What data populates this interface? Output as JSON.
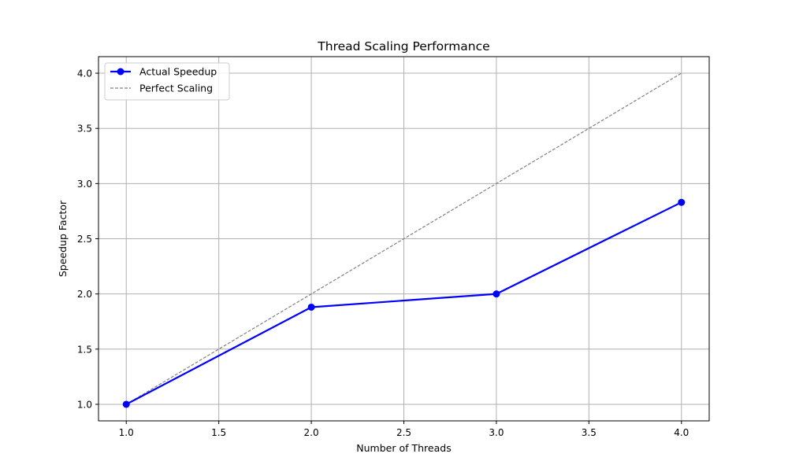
{
  "chart_data": {
    "type": "line",
    "title": "Thread Scaling Performance",
    "xlabel": "Number of Threads",
    "ylabel": "Speedup Factor",
    "xlim": [
      0.85,
      4.15
    ],
    "ylim": [
      0.85,
      4.15
    ],
    "x_ticks": [
      1.0,
      1.5,
      2.0,
      2.5,
      3.0,
      3.5,
      4.0
    ],
    "x_tick_labels": [
      "1.0",
      "1.5",
      "2.0",
      "2.5",
      "3.0",
      "3.5",
      "4.0"
    ],
    "y_ticks": [
      1.0,
      1.5,
      2.0,
      2.5,
      3.0,
      3.5,
      4.0
    ],
    "y_tick_labels": [
      "1.0",
      "1.5",
      "2.0",
      "2.5",
      "3.0",
      "3.5",
      "4.0"
    ],
    "grid": true,
    "legend_position": "upper-left",
    "series": [
      {
        "name": "Actual Speedup",
        "x": [
          1,
          2,
          3,
          4
        ],
        "y": [
          1.0,
          1.88,
          2.0,
          2.83
        ],
        "color": "#0000ff",
        "style": "solid",
        "marker": "circle"
      },
      {
        "name": "Perfect Scaling",
        "x": [
          1,
          2,
          3,
          4
        ],
        "y": [
          1,
          2,
          3,
          4
        ],
        "color": "#808080",
        "style": "dashed",
        "marker": "none"
      }
    ]
  }
}
